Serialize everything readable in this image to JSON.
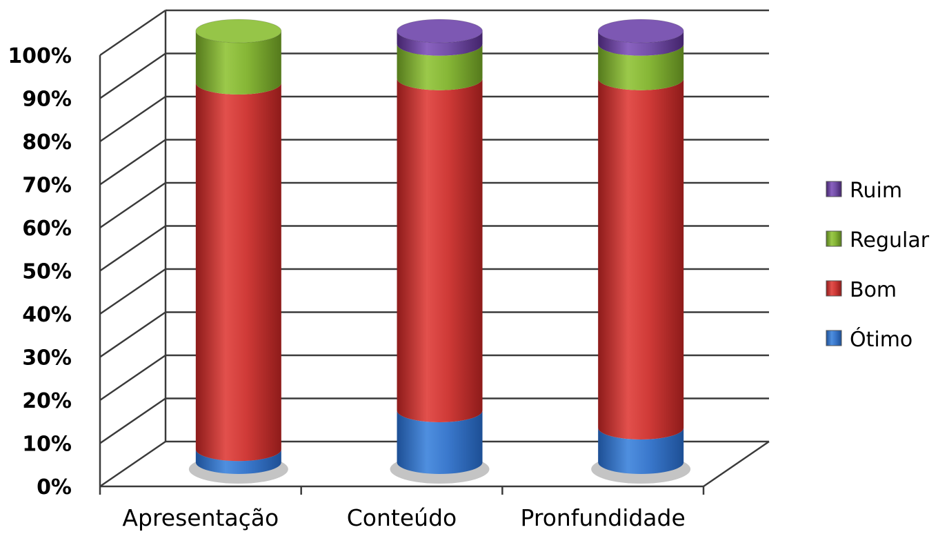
{
  "chart_data": {
    "type": "bar",
    "stacked": true,
    "normalized": true,
    "categories": [
      "Apresentação",
      "Conteúdo",
      "Pronfundidade"
    ],
    "series": [
      {
        "name": "Ótimo",
        "values": [
          3,
          12,
          8
        ],
        "color": "#2f6fc4"
      },
      {
        "name": "Bom",
        "values": [
          85,
          77,
          81
        ],
        "color": "#c8302e"
      },
      {
        "name": "Regular",
        "values": [
          12,
          8,
          8
        ],
        "color": "#7fac2e"
      },
      {
        "name": "Ruim",
        "values": [
          0,
          3,
          3
        ],
        "color": "#6a3f9a"
      }
    ],
    "y_ticks": [
      "0%",
      "10%",
      "20%",
      "30%",
      "40%",
      "50%",
      "60%",
      "70%",
      "80%",
      "90%",
      "100%"
    ],
    "ylim": [
      0,
      100
    ],
    "legend_position": "right",
    "grid": true,
    "style": "3d-cylinder"
  }
}
